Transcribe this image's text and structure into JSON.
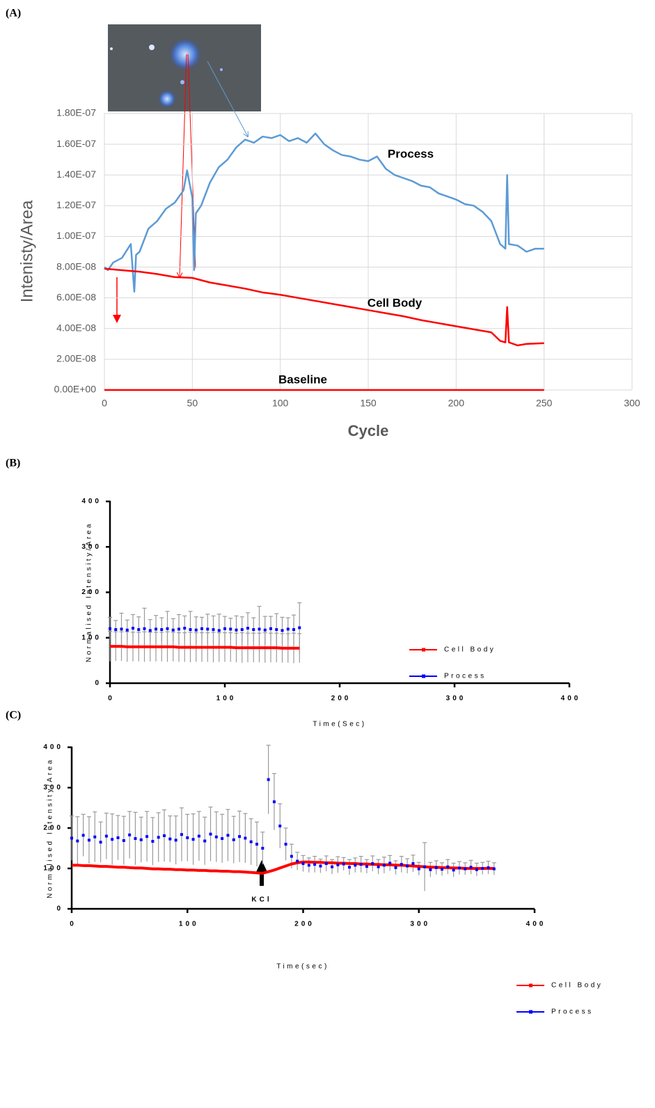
{
  "chart_data": [
    {
      "type": "line",
      "panel": "(A)",
      "x_label": "Cycle",
      "y_label": "Intenisty/Area",
      "grid": true,
      "xlim": [
        0,
        300
      ],
      "xticks": [
        0,
        50,
        100,
        150,
        200,
        250,
        300
      ],
      "ylim": [
        0,
        1.8e-07
      ],
      "yticks": [
        {
          "value": 0,
          "label": "0.00E+00"
        },
        {
          "value": 2e-08,
          "label": "2.00E-08"
        },
        {
          "value": 4e-08,
          "label": "4.00E-08"
        },
        {
          "value": 6e-08,
          "label": "6.00E-08"
        },
        {
          "value": 8e-08,
          "label": "8.00E-08"
        },
        {
          "value": 1e-07,
          "label": "1.00E-07"
        },
        {
          "value": 1.2e-07,
          "label": "1.20E-07"
        },
        {
          "value": 1.4e-07,
          "label": "1.40E-07"
        },
        {
          "value": 1.6e-07,
          "label": "1.60E-07"
        },
        {
          "value": 1.8e-07,
          "label": "1.80E-07"
        }
      ],
      "series": [
        {
          "name": "Process",
          "color": "#5b9bd5",
          "mode": "line",
          "x": [
            0,
            2,
            5,
            10,
            15,
            17,
            18,
            20,
            25,
            30,
            35,
            40,
            45,
            47,
            50,
            51,
            52,
            55,
            60,
            65,
            70,
            75,
            80,
            85,
            90,
            95,
            100,
            105,
            110,
            115,
            120,
            125,
            130,
            135,
            140,
            145,
            150,
            155,
            160,
            165,
            170,
            175,
            180,
            185,
            190,
            195,
            200,
            205,
            210,
            215,
            220,
            225,
            228,
            229,
            230,
            235,
            240,
            245,
            250
          ],
          "values": [
            8e-08,
            7.8e-08,
            8.3e-08,
            8.6e-08,
            9.5e-08,
            6.4e-08,
            8.8e-08,
            9e-08,
            1.05e-07,
            1.1e-07,
            1.18e-07,
            1.22e-07,
            1.3e-07,
            1.43e-07,
            1.25e-07,
            7.8e-08,
            1.15e-07,
            1.2e-07,
            1.35e-07,
            1.45e-07,
            1.5e-07,
            1.58e-07,
            1.63e-07,
            1.61e-07,
            1.65e-07,
            1.64e-07,
            1.66e-07,
            1.62e-07,
            1.64e-07,
            1.61e-07,
            1.67e-07,
            1.6e-07,
            1.56e-07,
            1.53e-07,
            1.52e-07,
            1.5e-07,
            1.49e-07,
            1.52e-07,
            1.44e-07,
            1.4e-07,
            1.38e-07,
            1.36e-07,
            1.33e-07,
            1.32e-07,
            1.28e-07,
            1.26e-07,
            1.24e-07,
            1.21e-07,
            1.2e-07,
            1.16e-07,
            1.1e-07,
            9.5e-08,
            9.2e-08,
            1.4e-07,
            9.5e-08,
            9.4e-08,
            9e-08,
            9.2e-08,
            9.2e-08
          ]
        },
        {
          "name": "Cell Body",
          "color": "#ff0000",
          "mode": "line",
          "x": [
            0,
            10,
            20,
            30,
            40,
            50,
            60,
            70,
            80,
            90,
            100,
            110,
            120,
            130,
            140,
            150,
            160,
            170,
            180,
            190,
            200,
            210,
            220,
            225,
            228,
            229,
            230,
            235,
            240,
            250
          ],
          "values": [
            7.9e-08,
            7.8e-08,
            7.7e-08,
            7.55e-08,
            7.35e-08,
            7.3e-08,
            7e-08,
            6.8e-08,
            6.6e-08,
            6.35e-08,
            6.2e-08,
            6e-08,
            5.8e-08,
            5.6e-08,
            5.4e-08,
            5.2e-08,
            5e-08,
            4.8e-08,
            4.55e-08,
            4.35e-08,
            4.15e-08,
            3.95e-08,
            3.75e-08,
            3.2e-08,
            3.1e-08,
            5.4e-08,
            3.1e-08,
            2.9e-08,
            3e-08,
            3.05e-08
          ]
        },
        {
          "name": "Baseline",
          "color": "#ff0000",
          "mode": "line",
          "x": [
            0,
            250
          ],
          "values": [
            0,
            0
          ]
        }
      ]
    },
    {
      "type": "line",
      "panel": "(B)",
      "x_label": "Time(Sec)",
      "y_label": "Normalised Intensity/Area",
      "grid": false,
      "legend": "right",
      "xlim": [
        0,
        400
      ],
      "xticks": [
        0,
        100,
        200,
        300,
        400
      ],
      "ylim": [
        0,
        400
      ],
      "yticks": [
        0,
        100,
        200,
        300,
        400
      ],
      "series": [
        {
          "name": "Cell Body",
          "color": "#ff0000",
          "mode": "line",
          "x": [
            0,
            5,
            10,
            15,
            20,
            25,
            30,
            35,
            40,
            45,
            50,
            55,
            60,
            65,
            70,
            75,
            80,
            85,
            90,
            95,
            100,
            105,
            110,
            115,
            120,
            125,
            130,
            135,
            140,
            145,
            150,
            155,
            160,
            165
          ],
          "values": [
            81,
            81,
            81,
            80,
            80,
            80,
            80,
            80,
            80,
            80,
            80,
            80,
            79,
            79,
            79,
            79,
            79,
            79,
            79,
            79,
            79,
            79,
            78,
            78,
            78,
            78,
            78,
            78,
            78,
            78,
            77,
            77,
            77,
            77
          ],
          "errors": [
            33,
            32,
            32,
            33,
            32,
            32,
            33,
            32,
            32,
            32,
            33,
            32,
            32,
            32,
            33,
            32,
            32,
            32,
            33,
            32,
            32,
            32,
            32,
            33,
            32,
            32,
            32,
            33,
            32,
            32,
            32,
            32,
            33,
            32
          ]
        },
        {
          "name": "Process",
          "color": "#0000ff",
          "mode": "markers",
          "x": [
            0,
            5,
            10,
            15,
            20,
            25,
            30,
            35,
            40,
            45,
            50,
            55,
            60,
            65,
            70,
            75,
            80,
            85,
            90,
            95,
            100,
            105,
            110,
            115,
            120,
            125,
            130,
            135,
            140,
            145,
            150,
            155,
            160,
            165
          ],
          "values": [
            120,
            118,
            119,
            117,
            121,
            118,
            120,
            116,
            119,
            118,
            120,
            117,
            119,
            121,
            118,
            117,
            120,
            119,
            118,
            116,
            120,
            119,
            117,
            118,
            121,
            118,
            119,
            117,
            120,
            118,
            116,
            119,
            118,
            122
          ],
          "errors": [
            25,
            20,
            35,
            22,
            30,
            28,
            45,
            24,
            30,
            26,
            38,
            25,
            32,
            27,
            40,
            29,
            25,
            33,
            30,
            36,
            27,
            24,
            31,
            28,
            34,
            26,
            50,
            30,
            27,
            35,
            29,
            25,
            32,
            55
          ]
        }
      ]
    },
    {
      "type": "line",
      "panel": "(C)",
      "x_label": "Time(sec)",
      "y_label": "Normalised Intensity/Area",
      "grid": false,
      "legend": "right",
      "annotation": "KCl",
      "xlim": [
        0,
        400
      ],
      "xticks": [
        0,
        100,
        200,
        300,
        400
      ],
      "ylim": [
        0,
        400
      ],
      "yticks": [
        0,
        100,
        200,
        300,
        400
      ],
      "series": [
        {
          "name": "Cell Body",
          "color": "#ff0000",
          "mode": "line",
          "x": [
            0,
            5,
            10,
            15,
            20,
            25,
            30,
            35,
            40,
            45,
            50,
            55,
            60,
            65,
            70,
            75,
            80,
            85,
            90,
            95,
            100,
            105,
            110,
            115,
            120,
            125,
            130,
            135,
            140,
            145,
            150,
            155,
            160,
            165,
            170,
            175,
            180,
            185,
            190,
            195,
            200,
            205,
            210,
            215,
            220,
            225,
            230,
            235,
            240,
            245,
            250,
            255,
            260,
            265,
            270,
            275,
            280,
            285,
            290,
            295,
            300,
            305,
            310,
            315,
            320,
            325,
            330,
            335,
            340,
            345,
            350,
            355,
            360,
            365
          ],
          "values": [
            108,
            108,
            107,
            107,
            106,
            105,
            105,
            104,
            103,
            103,
            102,
            101,
            101,
            100,
            99,
            99,
            98,
            98,
            97,
            97,
            96,
            96,
            95,
            95,
            94,
            94,
            93,
            93,
            92,
            92,
            91,
            90,
            89,
            88,
            92,
            96,
            101,
            106,
            111,
            114,
            116,
            116,
            115,
            115,
            114,
            114,
            113,
            113,
            112,
            112,
            111,
            111,
            110,
            110,
            109,
            109,
            108,
            108,
            107,
            106,
            105,
            104,
            103,
            103,
            102,
            102,
            101,
            101,
            100,
            100,
            100,
            100,
            100,
            100
          ]
        },
        {
          "name": "Process",
          "color": "#0000ff",
          "mode": "markers",
          "x": [
            0,
            5,
            10,
            15,
            20,
            25,
            30,
            35,
            40,
            45,
            50,
            55,
            60,
            65,
            70,
            75,
            80,
            85,
            90,
            95,
            100,
            105,
            110,
            115,
            120,
            125,
            130,
            135,
            140,
            145,
            150,
            155,
            160,
            165,
            170,
            175,
            180,
            185,
            190,
            195,
            200,
            205,
            210,
            215,
            220,
            225,
            230,
            235,
            240,
            245,
            250,
            255,
            260,
            265,
            270,
            275,
            280,
            285,
            290,
            295,
            300,
            305,
            310,
            315,
            320,
            325,
            330,
            335,
            340,
            345,
            350,
            355,
            360,
            365
          ],
          "values": [
            175,
            168,
            182,
            170,
            178,
            165,
            180,
            172,
            176,
            169,
            183,
            174,
            171,
            179,
            167,
            177,
            181,
            173,
            170,
            184,
            176,
            172,
            180,
            168,
            185,
            178,
            174,
            182,
            171,
            179,
            175,
            166,
            160,
            150,
            320,
            265,
            205,
            160,
            130,
            118,
            112,
            108,
            110,
            106,
            112,
            104,
            109,
            111,
            103,
            108,
            110,
            105,
            112,
            104,
            108,
            113,
            102,
            110,
            106,
            112,
            99,
            104,
            97,
            102,
            98,
            104,
            96,
            101,
            99,
            103,
            97,
            100,
            102,
            99
          ],
          "errors": [
            55,
            60,
            52,
            58,
            62,
            50,
            57,
            63,
            55,
            60,
            58,
            65,
            56,
            62,
            59,
            61,
            64,
            57,
            60,
            66,
            58,
            63,
            61,
            59,
            67,
            62,
            60,
            64,
            58,
            63,
            61,
            57,
            55,
            40,
            85,
            70,
            55,
            40,
            30,
            22,
            20,
            18,
            20,
            17,
            19,
            18,
            20,
            16,
            19,
            18,
            20,
            17,
            19,
            18,
            20,
            19,
            17,
            20,
            18,
            21,
            16,
            60,
            18,
            17,
            16,
            18,
            17,
            16,
            15,
            17,
            16,
            15,
            16,
            15
          ]
        }
      ]
    }
  ]
}
